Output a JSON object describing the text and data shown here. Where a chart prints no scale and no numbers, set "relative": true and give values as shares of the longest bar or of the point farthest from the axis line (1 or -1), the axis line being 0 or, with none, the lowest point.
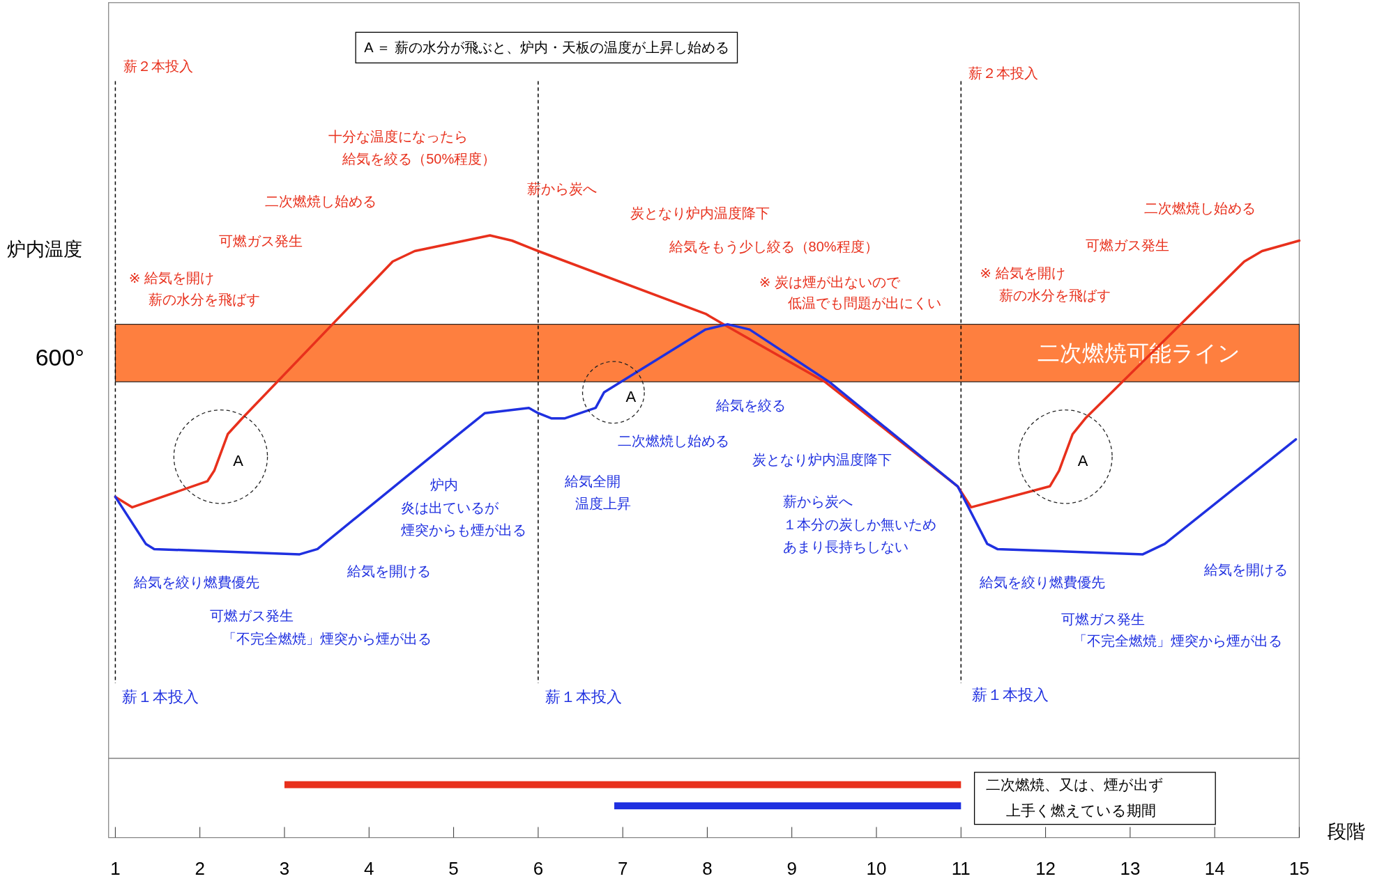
{
  "chart_data": [
    {
      "type": "line",
      "ylabel": "炉内温度",
      "relative": true,
      "xlim": [
        0.92,
        15
      ],
      "tick_labels": false,
      "marker": "none",
      "line_style": "solid",
      "series": [
        {
          "color": "#e8301c",
          "x": [
            1.0,
            1.2,
            2.09,
            2.17,
            2.33,
            2.5,
            4.28,
            4.54,
            5.43,
            5.69,
            6.0,
            7.98,
            8.19,
            9.39,
            10.96,
            11.12,
            12.05,
            12.16,
            12.32,
            12.47,
            14.35,
            14.56,
            15.0
          ],
          "values": [
            0.5,
            0.48,
            0.53,
            0.55,
            0.62,
            0.65,
            0.95,
            0.97,
            1.0,
            0.99,
            0.97,
            0.85,
            0.83,
            0.72,
            0.52,
            0.48,
            0.52,
            0.55,
            0.62,
            0.65,
            0.95,
            0.97,
            0.99
          ]
        },
        {
          "color": "#1f30e0",
          "x": [
            1.0,
            1.36,
            1.46,
            3.18,
            3.39,
            5.06,
            5.37,
            5.89,
            6.0,
            6.16,
            6.31,
            6.68,
            6.78,
            7.98,
            8.24,
            8.5,
            9.44,
            10.96,
            11.31,
            11.43,
            13.15,
            13.41,
            14.96
          ],
          "values": [
            0.5,
            0.41,
            0.4,
            0.39,
            0.4,
            0.62,
            0.66,
            0.67,
            0.66,
            0.65,
            0.65,
            0.67,
            0.7,
            0.82,
            0.83,
            0.82,
            0.72,
            0.52,
            0.41,
            0.4,
            0.39,
            0.41,
            0.61
          ]
        }
      ],
      "ref_lines": [
        {
          "axis": "x",
          "value": 1,
          "label": "薪１本投入",
          "color": "#000000",
          "line_style": "dashed"
        },
        {
          "axis": "x",
          "value": 6,
          "label": "薪１本投入",
          "color": "#000000",
          "line_style": "dashed"
        },
        {
          "axis": "x",
          "value": 11,
          "label": "薪１本投入",
          "color": "#000000",
          "line_style": "dashed"
        }
      ],
      "bands": [
        {
          "axis": "y",
          "from": 0.72,
          "to": 0.83,
          "label": "二次燃焼可能ライン",
          "color": "#fe7f3f"
        }
      ],
      "annotations": [
        "A ＝ 薪の水分が飛ぶと、炉内・天板の温度が上昇し始める",
        "600°",
        "薪２本投入",
        "薪２本投入",
        "十分な温度になったら",
        "給気を絞る（50%程度）",
        "二次燃焼し始める",
        "可燃ガス発生",
        "※ 給気を開け",
        "薪の水分を飛ばす",
        "薪から炭へ",
        "炭となり炉内温度降下",
        "給気をもう少し絞る（80%程度）",
        "※ 炭は煙が出ないので",
        "低温でも問題が出にくい",
        "二次燃焼し始める",
        "可燃ガス発生",
        "※ 給気を開け",
        "薪の水分を飛ばす",
        "給気を絞り燃費優先",
        "可燃ガス発生",
        "「不完全燃焼」煙突から煙が出る",
        "給気を開ける",
        "炉内",
        "炎は出ているが",
        "煙突からも煙が出る",
        "給気全開",
        "温度上昇",
        "二次燃焼し始める",
        "給気を絞る",
        "炭となり炉内温度降下",
        "薪から炭へ",
        "１本分の炭しか無いため",
        "あまり長持ちしない",
        "給気を絞り燃費優先",
        "可燃ガス発生",
        "「不完全燃焼」煙突から煙が出る",
        "給気を開ける",
        "A",
        "A",
        "A"
      ]
    },
    {
      "type": "bar",
      "orientation": "horizontal",
      "categories": [
        null,
        null
      ],
      "base": [
        3,
        6.9
      ],
      "values": [
        8,
        4.1
      ],
      "colors": [
        "#e8301c",
        "#1f30e0"
      ],
      "xlabel": "段階",
      "xlim": [
        0.92,
        15
      ],
      "xticks": [
        1,
        2,
        3,
        4,
        5,
        6,
        7,
        8,
        9,
        10,
        11,
        12,
        13,
        14,
        15
      ],
      "tick_labels": "x",
      "annotations": [
        "二次燃焼、又は、煙が出ず",
        "上手く燃えている期間"
      ]
    }
  ]
}
